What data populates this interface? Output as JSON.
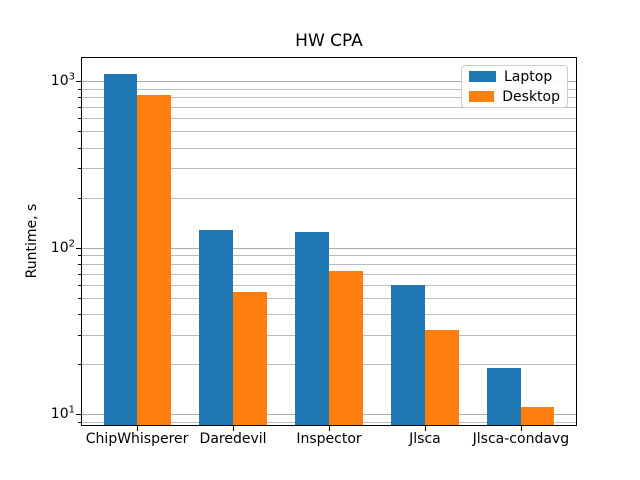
{
  "chart_data": {
    "type": "bar",
    "title": "HW CPA",
    "xlabel": "",
    "ylabel": "Runtime, s",
    "yscale": "log",
    "ylim": [
      8.5,
      1400
    ],
    "xlim": [
      -0.585,
      4.585
    ],
    "grid": "both",
    "legend_position": "upper right",
    "categories": [
      "ChipWhisperer",
      "Daredevil",
      "Inspector",
      "Jlsca",
      "Jlsca-condavg"
    ],
    "yticks": [
      10,
      100,
      1000
    ],
    "series": [
      {
        "name": "Laptop",
        "color": "#1f77b4",
        "values": [
          1100,
          128,
          124,
          60,
          19
        ]
      },
      {
        "name": "Desktop",
        "color": "#ff7f0e",
        "values": [
          830,
          54,
          73,
          32,
          11
        ]
      }
    ]
  }
}
